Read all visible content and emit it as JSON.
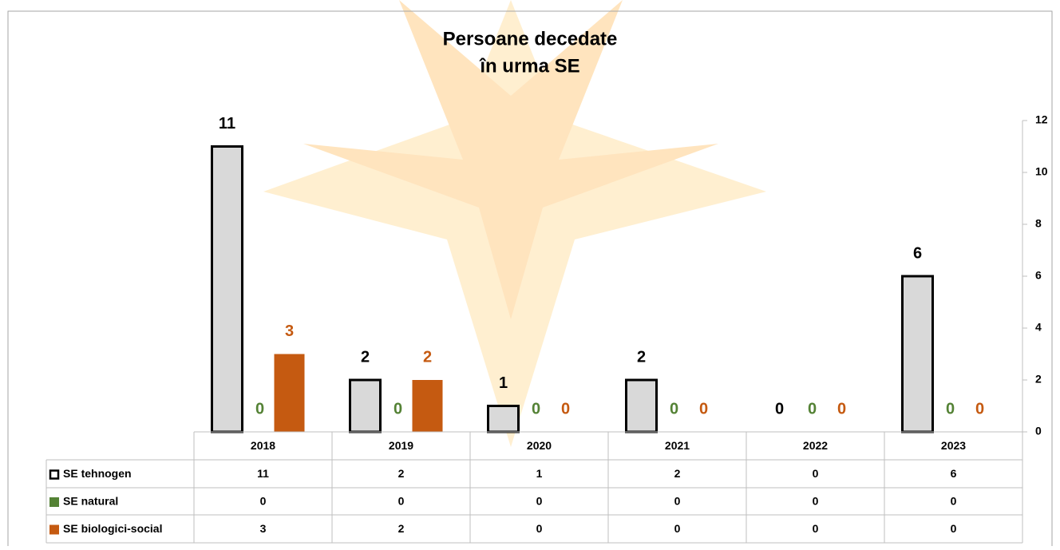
{
  "chart_data": {
    "type": "bar",
    "title": [
      "Persoane decedate",
      "în urma SE"
    ],
    "categories": [
      "2018",
      "2019",
      "2020",
      "2021",
      "2022",
      "2023"
    ],
    "series": [
      {
        "name": "SE tehnogen",
        "color": "#d9d9d9",
        "values": [
          11,
          2,
          1,
          2,
          0,
          6
        ]
      },
      {
        "name": "SE natural",
        "color": "#548235",
        "values": [
          0,
          0,
          0,
          0,
          0,
          0
        ]
      },
      {
        "name": "SE biologici-social",
        "color": "#c55a11",
        "values": [
          3,
          2,
          0,
          0,
          0,
          0
        ]
      }
    ],
    "ylim": [
      0,
      12
    ],
    "yticks": [
      0,
      2,
      4,
      6,
      8,
      10,
      12
    ],
    "axis_side": "right"
  }
}
